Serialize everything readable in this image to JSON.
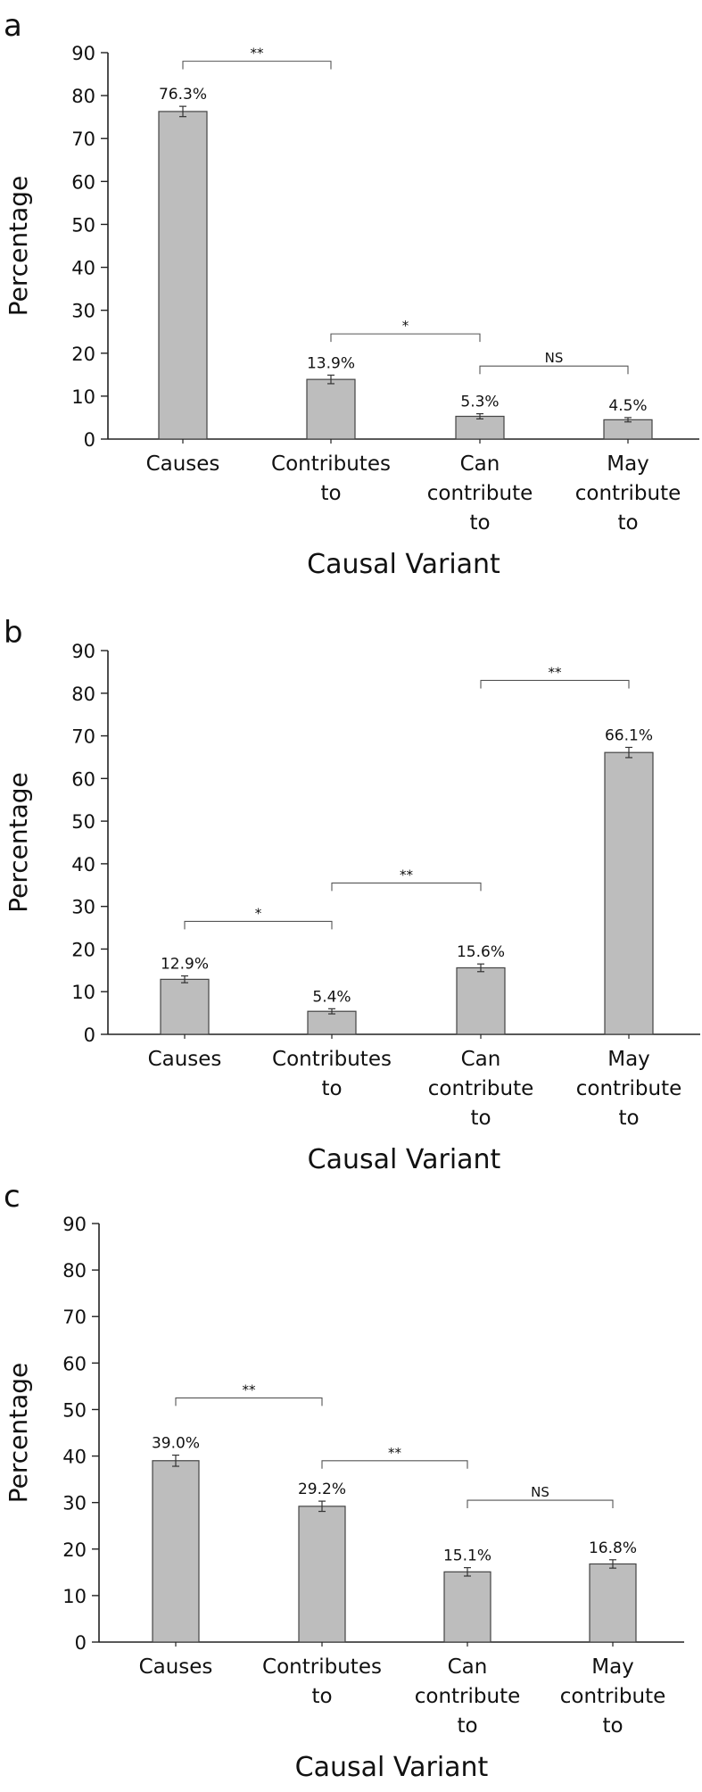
{
  "chart_data": [
    {
      "type": "bar",
      "panel_label": "a",
      "categories": [
        [
          "Causes"
        ],
        [
          "Contributes",
          "to"
        ],
        [
          "Can",
          "contribute",
          "to"
        ],
        [
          "May",
          "contribute",
          "to"
        ]
      ],
      "values": [
        76.3,
        13.9,
        5.3,
        4.5
      ],
      "errors": [
        1.2,
        1.0,
        0.6,
        0.5
      ],
      "value_labels": [
        "76.3%",
        "13.9%",
        "5.3%",
        "4.5%"
      ],
      "ylim": [
        0,
        90
      ],
      "yticks": [
        0,
        10,
        20,
        30,
        40,
        50,
        60,
        70,
        80,
        90
      ],
      "ylabel": "Percentage",
      "xlabel": "Causal Variant",
      "significance": [
        {
          "from": 0,
          "to": 1,
          "label": "**",
          "y": 88
        },
        {
          "from": 1,
          "to": 2,
          "label": "*",
          "y": 24.5
        },
        {
          "from": 2,
          "to": 3,
          "label": "NS",
          "y": 17
        }
      ],
      "bar_color": "#bdbdbd"
    },
    {
      "type": "bar",
      "panel_label": "b",
      "categories": [
        [
          "Causes"
        ],
        [
          "Contributes",
          "to"
        ],
        [
          "Can",
          "contribute",
          "to"
        ],
        [
          "May",
          "contribute",
          "to"
        ]
      ],
      "values": [
        12.9,
        5.4,
        15.6,
        66.1
      ],
      "errors": [
        0.8,
        0.6,
        0.9,
        1.2
      ],
      "value_labels": [
        "12.9%",
        "5.4%",
        "15.6%",
        "66.1%"
      ],
      "ylim": [
        0,
        90
      ],
      "yticks": [
        0,
        10,
        20,
        30,
        40,
        50,
        60,
        70,
        80,
        90
      ],
      "ylabel": "Percentage",
      "xlabel": "Causal Variant",
      "significance": [
        {
          "from": 0,
          "to": 1,
          "label": "*",
          "y": 26.5
        },
        {
          "from": 1,
          "to": 2,
          "label": "**",
          "y": 35.5
        },
        {
          "from": 2,
          "to": 3,
          "label": "**",
          "y": 83
        }
      ],
      "bar_color": "#bdbdbd"
    },
    {
      "type": "bar",
      "panel_label": "c",
      "categories": [
        [
          "Causes"
        ],
        [
          "Contributes",
          "to"
        ],
        [
          "Can",
          "contribute",
          "to"
        ],
        [
          "May",
          "contribute",
          "to"
        ]
      ],
      "values": [
        39.0,
        29.2,
        15.1,
        16.8
      ],
      "errors": [
        1.2,
        1.1,
        0.9,
        0.9
      ],
      "value_labels": [
        "39.0%",
        "29.2%",
        "15.1%",
        "16.8%"
      ],
      "ylim": [
        0,
        90
      ],
      "yticks": [
        0,
        10,
        20,
        30,
        40,
        50,
        60,
        70,
        80,
        90
      ],
      "ylabel": "Percentage",
      "xlabel": "Causal Variant",
      "significance": [
        {
          "from": 0,
          "to": 1,
          "label": "**",
          "y": 52.5
        },
        {
          "from": 1,
          "to": 2,
          "label": "**",
          "y": 39
        },
        {
          "from": 2,
          "to": 3,
          "label": "NS",
          "y": 30.5
        }
      ],
      "bar_color": "#bdbdbd"
    }
  ]
}
